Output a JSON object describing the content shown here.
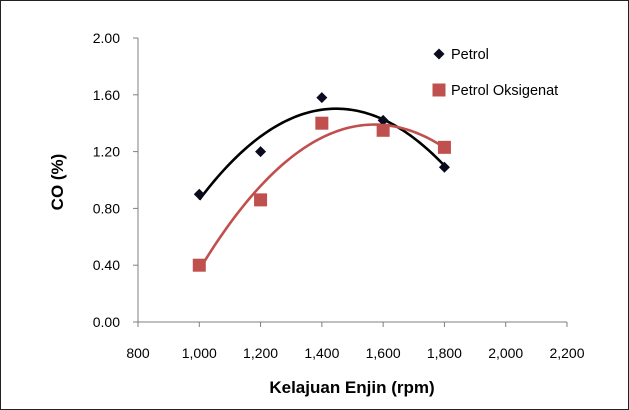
{
  "chart_data": {
    "type": "scatter",
    "title": "",
    "xlabel": "Kelajuan Enjin (rpm)",
    "ylabel": "CO (%)",
    "xlim": [
      800,
      2200
    ],
    "ylim": [
      0,
      2
    ],
    "x_ticks": [
      "800",
      "1,000",
      "1,200",
      "1,400",
      "1,600",
      "1,800",
      "2,000",
      "2,200"
    ],
    "y_ticks": [
      "0.00",
      "0.40",
      "0.80",
      "1.20",
      "1.60",
      "2.00"
    ],
    "grid": false,
    "legend_position": "top-right",
    "trendline": "polynomial order 2",
    "series": [
      {
        "name": "Petrol",
        "marker": "diamond",
        "color": "#0b0b1e",
        "line_color": "#000000",
        "x": [
          1000,
          1200,
          1400,
          1600,
          1800
        ],
        "y": [
          0.9,
          1.2,
          1.58,
          1.42,
          1.09
        ]
      },
      {
        "name": "Petrol Oksigenat",
        "marker": "square",
        "color": "#c0504d",
        "line_color": "#c0504d",
        "x": [
          1000,
          1200,
          1400,
          1600,
          1800
        ],
        "y": [
          0.4,
          0.86,
          1.4,
          1.35,
          1.23
        ]
      }
    ]
  }
}
